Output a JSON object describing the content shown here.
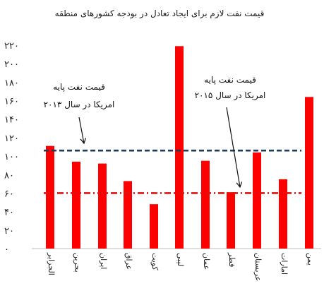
{
  "chart_data": {
    "type": "bar",
    "title": "قیمت نفت لازم برای ایجاد تعادل در بودجه کشورهای منطقه",
    "categories": [
      "الجزایر",
      "بحرین",
      "ایران",
      "عراق",
      "کویت",
      "لیبی",
      "عمان",
      "قطر",
      "عربستان",
      "امارات",
      "یمن"
    ],
    "values": [
      111,
      94,
      92,
      73,
      48,
      219,
      95,
      61,
      104,
      75,
      164
    ],
    "y_ticks": [
      "۰",
      "۲۰",
      "۴۰",
      "۶۰",
      "۸۰",
      "۱۰۰",
      "۱۲۰",
      "۱۴۰",
      "۱۶۰",
      "۱۸۰",
      "۲۰۰",
      "۲۲۰"
    ],
    "y_tick_values": [
      0,
      20,
      40,
      60,
      80,
      100,
      120,
      140,
      160,
      180,
      200,
      220
    ],
    "ylim": [
      0,
      220
    ],
    "bar_color": "#ff0000",
    "reference_lines": [
      {
        "value": 106,
        "color": "#1f3b5a",
        "label_lines": [
          "قیمت نفت پایه",
          "امریکا در سال ۲۰۱۳"
        ]
      },
      {
        "value": 60,
        "color": "#e01010",
        "label_lines": [
          "قیمت نفت پایه",
          "امریکا در سال ۲۰۱۵"
        ]
      }
    ]
  }
}
